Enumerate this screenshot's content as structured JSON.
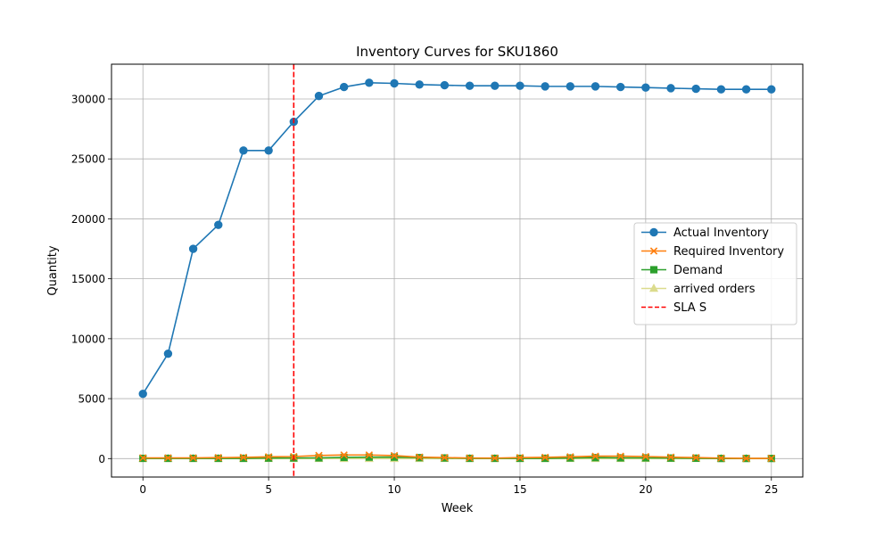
{
  "chart_data": {
    "type": "line",
    "title": "Inventory Curves for SKU1860",
    "xlabel": "Week",
    "ylabel": "Quantity",
    "xlim": [
      -1.25,
      26.25
    ],
    "ylim": [
      -1540,
      32900
    ],
    "xticks": [
      0,
      5,
      10,
      15,
      20,
      25
    ],
    "xtick_labels": [
      "0",
      "5",
      "10",
      "15",
      "20",
      "25"
    ],
    "yticks": [
      0,
      5000,
      10000,
      15000,
      20000,
      25000,
      30000
    ],
    "ytick_labels": [
      "0",
      "5000",
      "10000",
      "15000",
      "20000",
      "25000",
      "30000"
    ],
    "grid": true,
    "legend_position": "center-right",
    "x": [
      0,
      1,
      2,
      3,
      4,
      5,
      6,
      7,
      8,
      9,
      10,
      11,
      12,
      13,
      14,
      15,
      16,
      17,
      18,
      19,
      20,
      21,
      22,
      23,
      24,
      25
    ],
    "series": [
      {
        "name": "Actual Inventory",
        "color": "#1f77b4",
        "marker": "circle",
        "linestyle": "solid",
        "values": [
          5400,
          8750,
          17500,
          19500,
          25700,
          25700,
          28100,
          30250,
          31000,
          31350,
          31300,
          31200,
          31150,
          31100,
          31100,
          31100,
          31050,
          31050,
          31050,
          31000,
          30950,
          30900,
          30850,
          30800,
          30800,
          30800
        ]
      },
      {
        "name": "Required Inventory",
        "color": "#ff7f0e",
        "marker": "x",
        "linestyle": "solid",
        "values": [
          60,
          60,
          60,
          80,
          100,
          150,
          170,
          260,
          300,
          300,
          250,
          120,
          80,
          50,
          40,
          80,
          100,
          150,
          200,
          200,
          170,
          120,
          80,
          40,
          20,
          20
        ]
      },
      {
        "name": "Demand",
        "color": "#2ca02c",
        "marker": "square",
        "linestyle": "solid",
        "values": [
          20,
          20,
          20,
          20,
          20,
          40,
          50,
          60,
          100,
          120,
          120,
          80,
          50,
          20,
          20,
          20,
          20,
          50,
          80,
          60,
          60,
          40,
          30,
          10,
          10,
          10
        ]
      },
      {
        "name": "arrived orders",
        "color": "#dbdb8d",
        "marker": "triangle",
        "linestyle": "solid",
        "values": [
          0,
          0,
          0,
          0,
          0,
          0,
          0,
          0,
          0,
          0,
          0,
          0,
          0,
          0,
          0,
          0,
          0,
          0,
          0,
          0,
          0,
          0,
          0,
          0,
          0,
          0
        ]
      }
    ],
    "vlines": [
      {
        "name": "SLA S",
        "x": 6,
        "color": "#ff0000",
        "linestyle": "dashed"
      }
    ]
  }
}
